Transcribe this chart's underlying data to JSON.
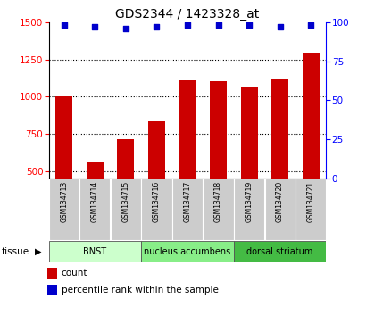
{
  "title": "GDS2344 / 1423328_at",
  "samples": [
    "GSM134713",
    "GSM134714",
    "GSM134715",
    "GSM134716",
    "GSM134717",
    "GSM134718",
    "GSM134719",
    "GSM134720",
    "GSM134721"
  ],
  "counts": [
    1000,
    560,
    715,
    835,
    1110,
    1105,
    1065,
    1115,
    1295
  ],
  "percentile_ranks": [
    98,
    97,
    96,
    97,
    98,
    98,
    98,
    97,
    98
  ],
  "bar_color": "#cc0000",
  "dot_color": "#0000cc",
  "ylim_left": [
    450,
    1500
  ],
  "ylim_right": [
    0,
    100
  ],
  "yticks_left": [
    500,
    750,
    1000,
    1250,
    1500
  ],
  "yticks_right": [
    0,
    25,
    50,
    75,
    100
  ],
  "tissue_groups": [
    {
      "label": "BNST",
      "start": 0,
      "end": 2,
      "color": "#ccffcc"
    },
    {
      "label": "nucleus accumbens",
      "start": 3,
      "end": 5,
      "color": "#88ee88"
    },
    {
      "label": "dorsal striatum",
      "start": 6,
      "end": 8,
      "color": "#44bb44"
    }
  ],
  "tissue_label": "tissue",
  "legend_count_label": "count",
  "legend_pct_label": "percentile rank within the sample",
  "bg_color": "#ffffff",
  "tick_label_bg": "#cccccc"
}
